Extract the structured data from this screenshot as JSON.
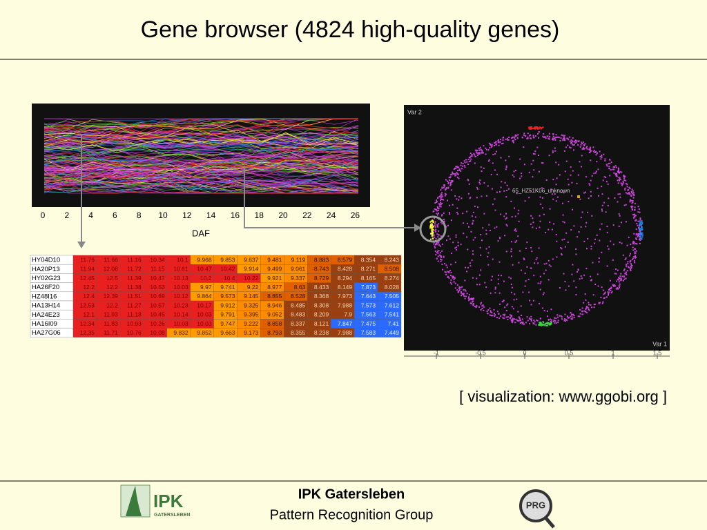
{
  "title": "Gene browser (4824 high-quality genes)",
  "parallel_plot": {
    "x_ticks": [
      "0",
      "2",
      "4",
      "6",
      "8",
      "10",
      "12",
      "14",
      "16",
      "18",
      "20",
      "22",
      "24",
      "26"
    ],
    "x_label": "DAF"
  },
  "table": {
    "rows": [
      [
        "HY04D10",
        11.76,
        11.66,
        11.16,
        10.34,
        10.1,
        9.968,
        9.853,
        9.637,
        9.481,
        9.119,
        8.883,
        8.579,
        8.354,
        8.243
      ],
      [
        "HA20P13",
        11.94,
        12.08,
        11.72,
        11.15,
        10.61,
        10.47,
        10.42,
        9.914,
        9.499,
        9.061,
        8.743,
        8.428,
        8.271,
        8.508
      ],
      [
        "HY02G23",
        12.45,
        12.5,
        11.39,
        10.47,
        10.13,
        10.2,
        10.4,
        10.22,
        9.921,
        9.337,
        8.729,
        8.294,
        8.165,
        8.274
      ],
      [
        "HA26F20",
        12.2,
        12.2,
        11.38,
        10.53,
        10.03,
        9.97,
        9.741,
        9.22,
        8.977,
        8.63,
        8.433,
        8.149,
        7.873,
        8.028
      ],
      [
        "HZ48I16",
        12.4,
        12.39,
        11.51,
        10.69,
        10.12,
        9.864,
        9.573,
        9.145,
        8.855,
        8.528,
        8.368,
        7.973,
        7.643,
        7.505
      ],
      [
        "HA13H14",
        12.53,
        12.2,
        11.27,
        10.57,
        10.23,
        10.17,
        9.912,
        9.325,
        8.946,
        8.485,
        8.308,
        7.988,
        7.573,
        7.612
      ],
      [
        "HA24E23",
        12.1,
        11.93,
        11.18,
        10.45,
        10.14,
        10.03,
        9.791,
        9.395,
        9.052,
        8.483,
        8.209,
        7.9,
        7.563,
        7.541
      ],
      [
        "HA16I09",
        12.34,
        11.83,
        10.93,
        10.26,
        10.03,
        10.03,
        9.747,
        9.222,
        8.858,
        8.337,
        8.121,
        7.847,
        7.475,
        7.41
      ],
      [
        "HA27G06",
        12.35,
        11.71,
        10.76,
        10.08,
        9.832,
        9.852,
        9.663,
        9.173,
        8.793,
        8.355,
        8.238,
        7.988,
        7.583,
        7.449
      ]
    ]
  },
  "scatter_plot": {
    "y_label": "Var 2",
    "x_label": "Var 1",
    "point_label": "65_HZ51K06_unknown",
    "x_ticks": [
      "-1",
      "-0.5",
      "0",
      "0.5",
      "1",
      "1.5"
    ]
  },
  "caption": "[ visualization: www.ggobi.org ]",
  "footer": {
    "institute": "IPK Gatersleben",
    "group": "Pattern Recognition Group",
    "logo_text": "IPK",
    "logo_subtext": "GATERSLEBEN",
    "badge": "PRG"
  }
}
